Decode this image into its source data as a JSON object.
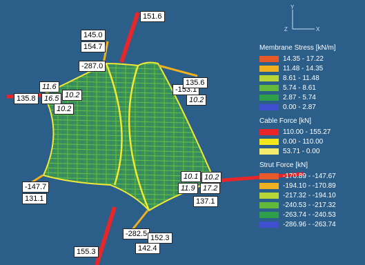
{
  "axes": {
    "y": "Y",
    "z": "Z",
    "x": "X"
  },
  "labels": [
    {
      "id": "l1",
      "text": "151.6",
      "style": "normal"
    },
    {
      "id": "l2",
      "text": "145.0",
      "style": "normal"
    },
    {
      "id": "l3",
      "text": "154.7",
      "style": "normal"
    },
    {
      "id": "l4",
      "text": "-287.0",
      "style": "normal"
    },
    {
      "id": "l5",
      "text": "11.6",
      "style": "italic"
    },
    {
      "id": "l6",
      "text": "135.8",
      "style": "normal"
    },
    {
      "id": "l7",
      "text": "16.5",
      "style": "italic"
    },
    {
      "id": "l8",
      "text": "10.2",
      "style": "italic"
    },
    {
      "id": "l9",
      "text": "10.2",
      "style": "italic"
    },
    {
      "id": "l10",
      "text": "-153.1",
      "style": "normal"
    },
    {
      "id": "l11",
      "text": "135.6",
      "style": "normal"
    },
    {
      "id": "l12",
      "text": "10.2",
      "style": "italic"
    },
    {
      "id": "l13",
      "text": "10.1",
      "style": "italic"
    },
    {
      "id": "l14",
      "text": "10.2",
      "style": "italic"
    },
    {
      "id": "l15",
      "text": "11.9",
      "style": "italic"
    },
    {
      "id": "l16",
      "text": "17.2",
      "style": "italic"
    },
    {
      "id": "l17",
      "text": "137.1",
      "style": "normal"
    },
    {
      "id": "l18",
      "text": "-147.7",
      "style": "normal"
    },
    {
      "id": "l19",
      "text": "131.1",
      "style": "normal"
    },
    {
      "id": "l20",
      "text": "-282.5",
      "style": "normal"
    },
    {
      "id": "l21",
      "text": "152.3",
      "style": "normal"
    },
    {
      "id": "l22",
      "text": "142.4",
      "style": "normal"
    },
    {
      "id": "l23",
      "text": "155.3",
      "style": "normal"
    }
  ],
  "legend": {
    "membrane": {
      "title": "Membrane Stress [kN/m]",
      "items": [
        {
          "range": "14.35 - 17.22",
          "color": "#e8592a"
        },
        {
          "range": "11.48 - 14.35",
          "color": "#f0b020"
        },
        {
          "range": "8.61 - 11.48",
          "color": "#b8d638"
        },
        {
          "range": "5.74 - 8.61",
          "color": "#62b93c"
        },
        {
          "range": "2.87 - 5.74",
          "color": "#2e9e4a"
        },
        {
          "range": "0.00 - 2.87",
          "color": "#3f4fd0"
        }
      ]
    },
    "cable": {
      "title": "Cable Force [kN]",
      "items": [
        {
          "range": "110.00 - 155.27",
          "color": "#e8262a"
        },
        {
          "range": "0.00 - 110.00",
          "color": "#f4e81c"
        },
        {
          "range": "53.71 - 0.00",
          "color": "#f2ea6a"
        }
      ]
    },
    "strut": {
      "title": "Strut Force [kN]",
      "items": [
        {
          "range": "-170.89 - -147.67",
          "color": "#e8592a"
        },
        {
          "range": "-194.10 - -170.89",
          "color": "#f0b020"
        },
        {
          "range": "-217.32 - -194.10",
          "color": "#b8d638"
        },
        {
          "range": "-240.53 - -217.32",
          "color": "#62b93c"
        },
        {
          "range": "-263.74 - -240.53",
          "color": "#2e9e4a"
        },
        {
          "range": "-286.96 - -263.74",
          "color": "#3f4fd0"
        }
      ]
    }
  }
}
